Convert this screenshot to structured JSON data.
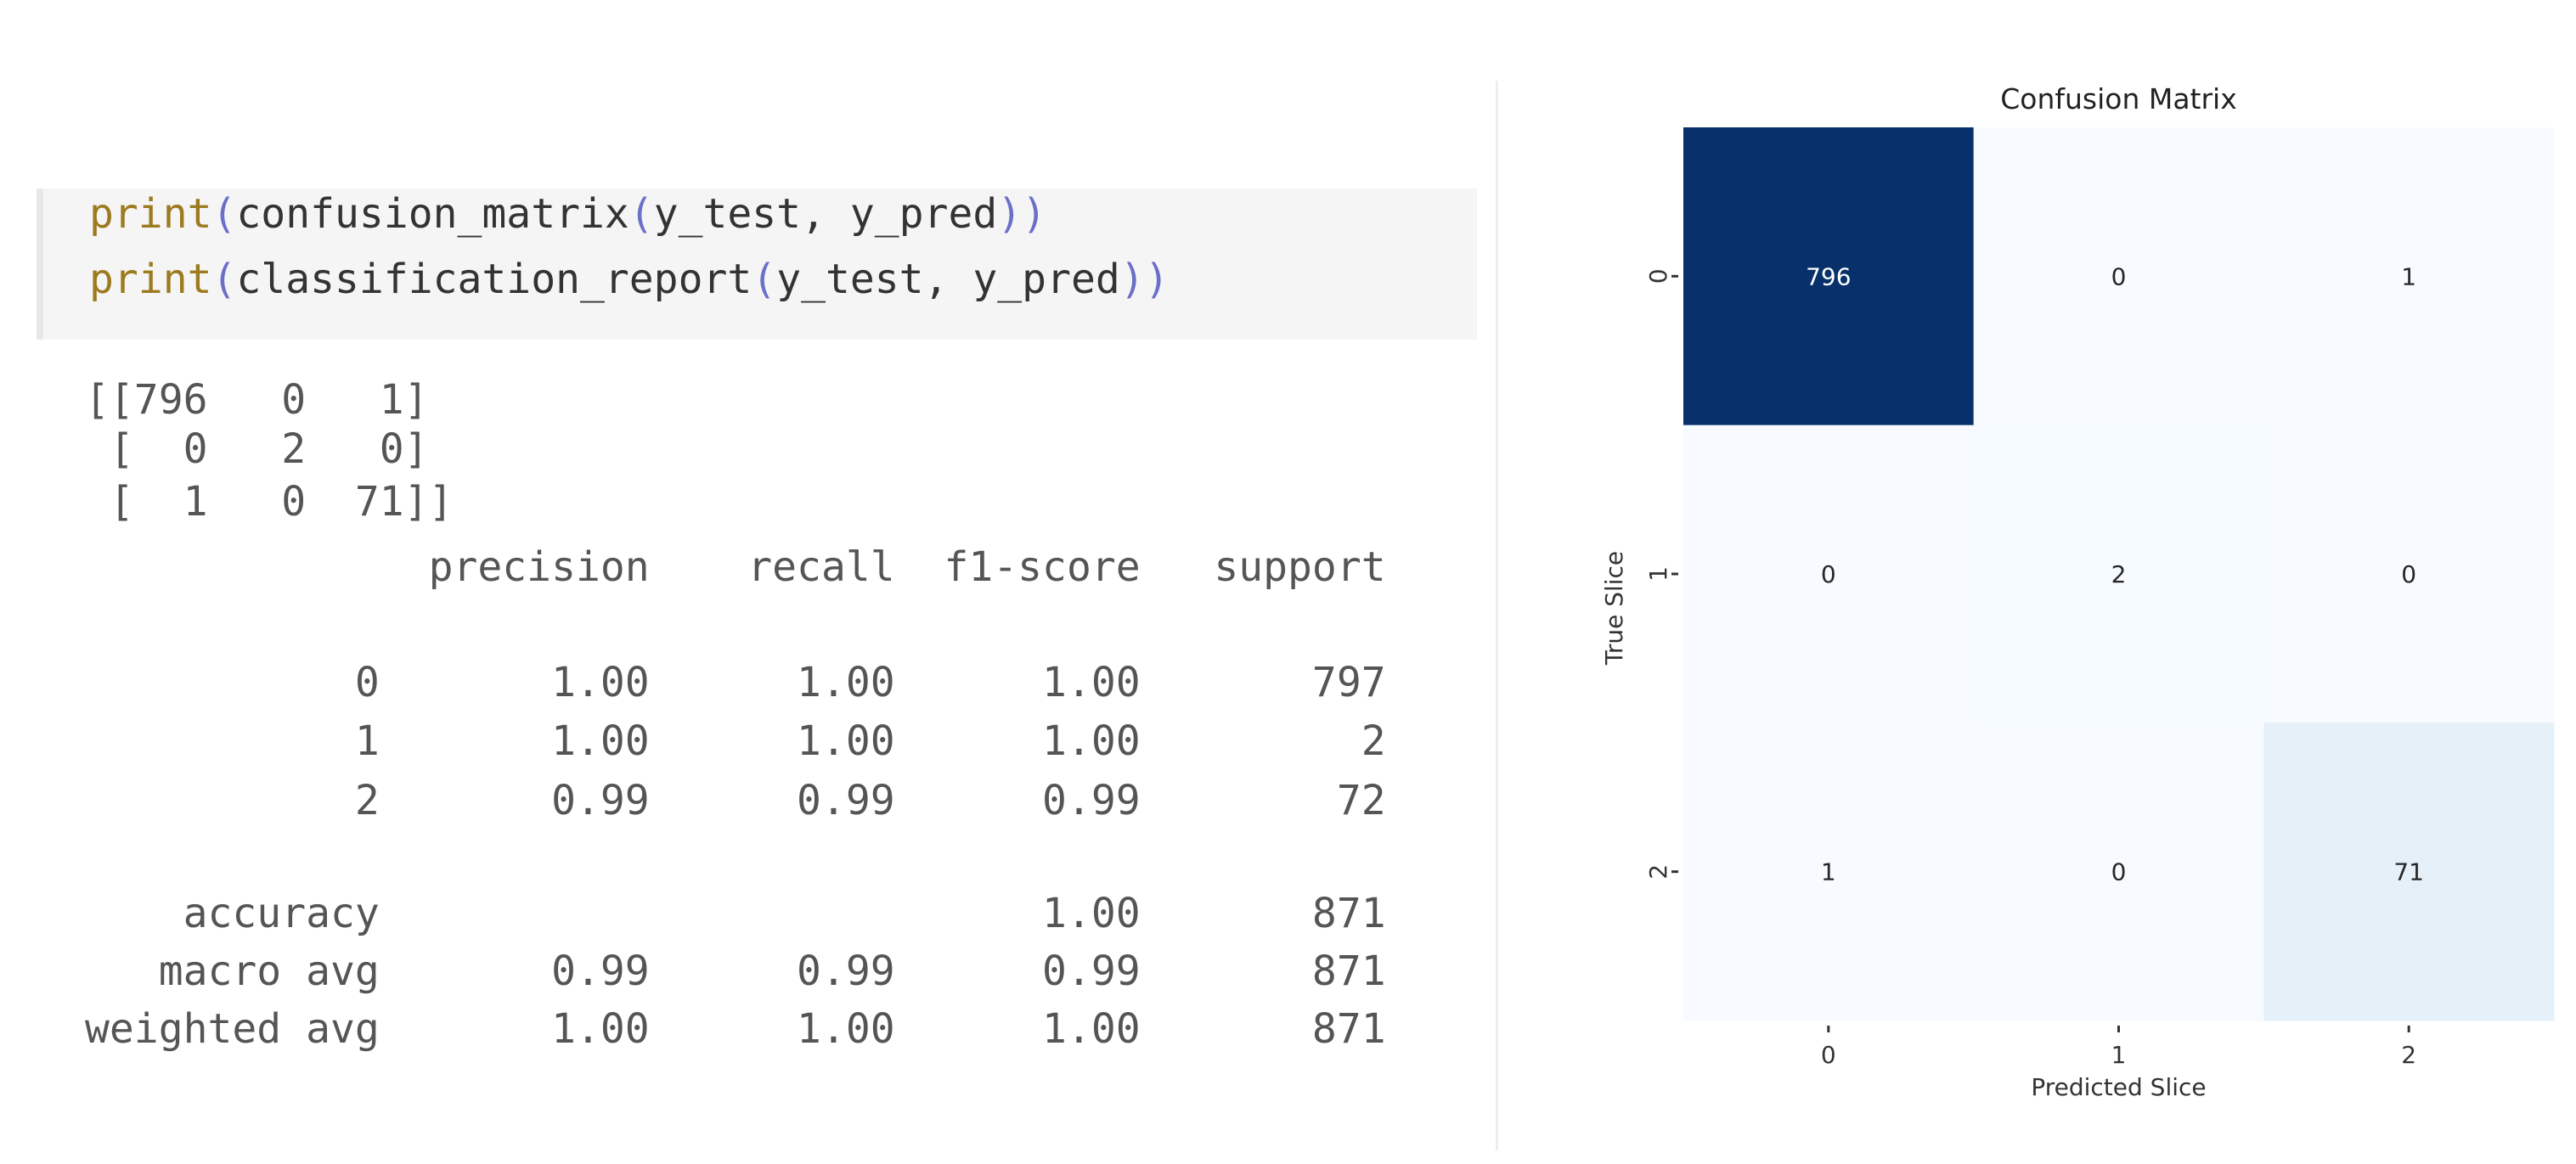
{
  "notebook": {
    "code_lines": [
      {
        "fn": "print",
        "body": "confusion_matrix",
        "args": "y_test, y_pred"
      },
      {
        "fn": "print",
        "body": "classification_report",
        "args": "y_test, y_pred"
      }
    ],
    "output_lines": [
      "[[796   0   1]",
      " [  0   2   0]",
      " [  1   0  71]]",
      "              precision    recall  f1-score   support",
      "           0       1.00      1.00      1.00       797",
      "           1       1.00      1.00      1.00         2",
      "           2       0.99      0.99      0.99        72",
      "    accuracy                           1.00       871",
      "   macro avg       0.99      0.99      0.99       871",
      "weighted avg       1.00      1.00      1.00       871"
    ]
  },
  "chart_data": {
    "type": "heatmap",
    "title": "Confusion Matrix",
    "xlabel": "Predicted Slice",
    "ylabel": "True Slice",
    "x_categories": [
      "0",
      "1",
      "2"
    ],
    "y_categories": [
      "0",
      "1",
      "2"
    ],
    "values": [
      [
        796,
        0,
        1
      ],
      [
        0,
        2,
        0
      ],
      [
        1,
        0,
        71
      ]
    ],
    "colormap": "Blues",
    "colors": {
      "max": "#08306b",
      "min": "#f7fbff"
    },
    "colorbar": false
  }
}
